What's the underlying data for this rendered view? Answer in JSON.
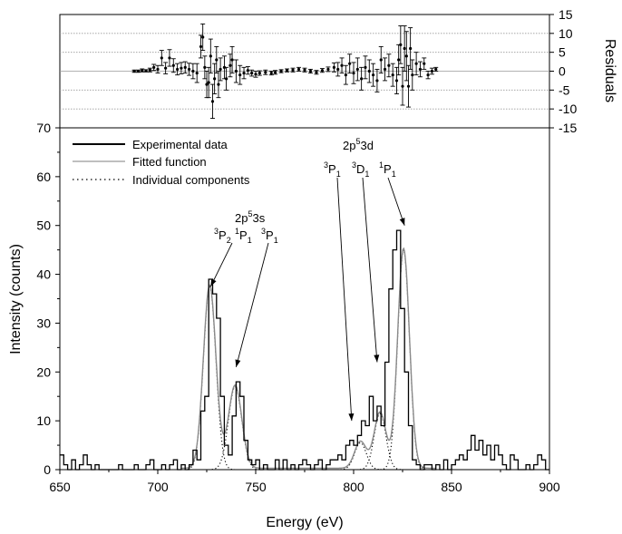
{
  "chart_data": [
    {
      "panel": "residuals",
      "type": "scatter",
      "ylabel": "Residuals",
      "ylim": [
        -15,
        15
      ],
      "yticks": [
        15,
        10,
        5,
        0,
        -5,
        -10,
        -15
      ],
      "xlim": [
        650,
        900
      ],
      "grid": true,
      "points": [
        {
          "x": 688,
          "y": 0.0,
          "err": 0.3
        },
        {
          "x": 690,
          "y": 0.0,
          "err": 0.3
        },
        {
          "x": 692,
          "y": 0.2,
          "err": 0.4
        },
        {
          "x": 694,
          "y": 0.1,
          "err": 0.3
        },
        {
          "x": 696,
          "y": 0.3,
          "err": 0.5
        },
        {
          "x": 698,
          "y": 1.0,
          "err": 0.8
        },
        {
          "x": 700,
          "y": 0.5,
          "err": 1.0
        },
        {
          "x": 702,
          "y": 3.5,
          "err": 2.0
        },
        {
          "x": 704,
          "y": 0.8,
          "err": 1.5
        },
        {
          "x": 706,
          "y": 3.5,
          "err": 2.2
        },
        {
          "x": 708,
          "y": 1.5,
          "err": 1.8
        },
        {
          "x": 710,
          "y": 0.5,
          "err": 1.5
        },
        {
          "x": 712,
          "y": 0.8,
          "err": 1.5
        },
        {
          "x": 714,
          "y": 1.0,
          "err": 1.5
        },
        {
          "x": 716,
          "y": 0.5,
          "err": 1.6
        },
        {
          "x": 718,
          "y": 0.0,
          "err": 2.0
        },
        {
          "x": 720,
          "y": -0.5,
          "err": 2.5
        },
        {
          "x": 722,
          "y": 6.5,
          "err": 3.0
        },
        {
          "x": 723,
          "y": 9.0,
          "err": 3.5
        },
        {
          "x": 724,
          "y": 1.0,
          "err": 3.0
        },
        {
          "x": 725,
          "y": -3.5,
          "err": 3.5
        },
        {
          "x": 726,
          "y": -3.0,
          "err": 4.0
        },
        {
          "x": 727,
          "y": 4.0,
          "err": 4.5
        },
        {
          "x": 728,
          "y": -8.0,
          "err": 4.5
        },
        {
          "x": 729,
          "y": -2.0,
          "err": 4.0
        },
        {
          "x": 730,
          "y": 3.0,
          "err": 3.5
        },
        {
          "x": 731,
          "y": -3.5,
          "err": 3.5
        },
        {
          "x": 732,
          "y": 0.5,
          "err": 3.0
        },
        {
          "x": 734,
          "y": 1.0,
          "err": 3.0
        },
        {
          "x": 735,
          "y": -2.0,
          "err": 3.0
        },
        {
          "x": 737,
          "y": 1.5,
          "err": 3.0
        },
        {
          "x": 738,
          "y": 3.0,
          "err": 3.5
        },
        {
          "x": 740,
          "y": 0.0,
          "err": 3.0
        },
        {
          "x": 742,
          "y": -1.0,
          "err": 2.5
        },
        {
          "x": 744,
          "y": -0.5,
          "err": 1.5
        },
        {
          "x": 746,
          "y": 0.2,
          "err": 1.0
        },
        {
          "x": 748,
          "y": -0.5,
          "err": 0.8
        },
        {
          "x": 750,
          "y": -0.8,
          "err": 0.8
        },
        {
          "x": 752,
          "y": -0.5,
          "err": 0.6
        },
        {
          "x": 755,
          "y": -0.3,
          "err": 0.6
        },
        {
          "x": 758,
          "y": -0.5,
          "err": 0.5
        },
        {
          "x": 760,
          "y": -0.3,
          "err": 0.5
        },
        {
          "x": 763,
          "y": 0.0,
          "err": 0.4
        },
        {
          "x": 766,
          "y": 0.2,
          "err": 0.4
        },
        {
          "x": 769,
          "y": 0.3,
          "err": 0.5
        },
        {
          "x": 772,
          "y": 0.5,
          "err": 0.5
        },
        {
          "x": 775,
          "y": 0.3,
          "err": 0.5
        },
        {
          "x": 778,
          "y": 0.0,
          "err": 0.5
        },
        {
          "x": 781,
          "y": -0.3,
          "err": 0.5
        },
        {
          "x": 784,
          "y": 0.2,
          "err": 0.5
        },
        {
          "x": 787,
          "y": 0.5,
          "err": 0.6
        },
        {
          "x": 790,
          "y": 1.0,
          "err": 1.2
        },
        {
          "x": 792,
          "y": 0.5,
          "err": 1.8
        },
        {
          "x": 794,
          "y": 1.5,
          "err": 2.0
        },
        {
          "x": 796,
          "y": -1.0,
          "err": 2.5
        },
        {
          "x": 798,
          "y": 2.0,
          "err": 2.5
        },
        {
          "x": 800,
          "y": -0.5,
          "err": 2.8
        },
        {
          "x": 802,
          "y": 0.5,
          "err": 3.0
        },
        {
          "x": 804,
          "y": -2.0,
          "err": 3.0
        },
        {
          "x": 806,
          "y": 1.0,
          "err": 3.0
        },
        {
          "x": 808,
          "y": 0.0,
          "err": 3.0
        },
        {
          "x": 810,
          "y": -1.0,
          "err": 3.0
        },
        {
          "x": 812,
          "y": -2.5,
          "err": 3.0
        },
        {
          "x": 814,
          "y": 3.0,
          "err": 3.5
        },
        {
          "x": 816,
          "y": 0.5,
          "err": 3.0
        },
        {
          "x": 818,
          "y": 1.5,
          "err": 3.0
        },
        {
          "x": 820,
          "y": -1.0,
          "err": 3.0
        },
        {
          "x": 822,
          "y": -2.5,
          "err": 3.5
        },
        {
          "x": 823,
          "y": 3.0,
          "err": 4.0
        },
        {
          "x": 824,
          "y": 7.0,
          "err": 5.0
        },
        {
          "x": 825,
          "y": -4.0,
          "err": 5.0
        },
        {
          "x": 826,
          "y": 6.0,
          "err": 6.0
        },
        {
          "x": 827,
          "y": 4.0,
          "err": 6.5
        },
        {
          "x": 828,
          "y": -4.0,
          "err": 5.5
        },
        {
          "x": 829,
          "y": 6.0,
          "err": 5.5
        },
        {
          "x": 830,
          "y": -1.0,
          "err": 4.0
        },
        {
          "x": 832,
          "y": 2.0,
          "err": 3.0
        },
        {
          "x": 834,
          "y": 0.5,
          "err": 2.0
        },
        {
          "x": 836,
          "y": 2.0,
          "err": 1.5
        },
        {
          "x": 838,
          "y": -1.0,
          "err": 1.0
        },
        {
          "x": 840,
          "y": 0.0,
          "err": 0.8
        },
        {
          "x": 842,
          "y": 0.5,
          "err": 0.5
        }
      ]
    },
    {
      "panel": "main",
      "type": "line",
      "xlabel": "Energy (eV)",
      "ylabel": "Intensity (counts)",
      "xlim": [
        650,
        900
      ],
      "ylim": [
        0,
        70
      ],
      "xticks": [
        650,
        700,
        750,
        800,
        850,
        900
      ],
      "yticks": [
        0,
        10,
        20,
        30,
        40,
        50,
        60,
        70
      ],
      "grid": false,
      "legend": {
        "position": "top-left",
        "entries": [
          "Experimental data",
          "Fitted function",
          "Individual components"
        ]
      },
      "series": [
        {
          "name": "Experimental data",
          "kind": "histogram",
          "bin_width": 2,
          "x": [
            650,
            652,
            654,
            656,
            658,
            660,
            662,
            664,
            666,
            668,
            670,
            672,
            674,
            676,
            678,
            680,
            682,
            684,
            686,
            688,
            690,
            692,
            694,
            696,
            698,
            700,
            702,
            704,
            706,
            708,
            710,
            712,
            714,
            716,
            718,
            720,
            722,
            724,
            726,
            728,
            730,
            732,
            734,
            736,
            738,
            740,
            742,
            744,
            746,
            748,
            750,
            752,
            754,
            756,
            758,
            760,
            762,
            764,
            766,
            768,
            770,
            772,
            774,
            776,
            778,
            780,
            782,
            784,
            786,
            788,
            790,
            792,
            794,
            796,
            798,
            800,
            802,
            804,
            806,
            808,
            810,
            812,
            814,
            816,
            818,
            820,
            822,
            824,
            826,
            828,
            830,
            832,
            834,
            836,
            838,
            840,
            842,
            844,
            846,
            848,
            850,
            852,
            854,
            856,
            858,
            860,
            862,
            864,
            866,
            868,
            870,
            872,
            874,
            876,
            878,
            880,
            882,
            884,
            886,
            888,
            890,
            892,
            894,
            896,
            898
          ],
          "y": [
            3,
            1,
            0,
            2,
            0,
            1,
            3,
            1,
            0,
            1,
            0,
            0,
            0,
            0,
            0,
            1,
            0,
            0,
            0,
            1,
            0,
            0,
            1,
            2,
            0,
            0,
            1,
            0,
            1,
            2,
            0,
            1,
            0,
            1,
            4,
            2,
            12,
            15,
            39,
            36,
            31,
            15,
            5,
            3,
            11,
            18,
            15,
            6,
            2,
            1,
            2,
            0,
            1,
            0,
            0,
            2,
            0,
            2,
            0,
            1,
            0,
            1,
            2,
            1,
            0,
            1,
            2,
            0,
            1,
            2,
            2,
            3,
            2,
            5,
            6,
            5,
            7,
            10,
            9,
            15,
            10,
            13,
            9,
            22,
            37,
            45,
            49,
            33,
            20,
            9,
            2,
            1,
            0,
            1,
            1,
            0,
            1,
            0,
            2,
            0,
            1,
            2,
            3,
            2,
            4,
            7,
            4,
            6,
            3,
            5,
            2,
            5,
            3,
            1,
            0,
            3,
            2,
            0,
            0,
            1,
            0,
            1,
            3,
            2,
            0
          ]
        },
        {
          "name": "Fitted function",
          "kind": "gaussian-sum",
          "components": [
            {
              "label": "3P2",
              "center": 726.5,
              "amplitude": 37.5,
              "sigma": 3.2
            },
            {
              "label": "1P1",
              "center": 739.5,
              "amplitude": 17.0,
              "sigma": 3.4
            },
            {
              "label": "3P1",
              "center": 803.5,
              "amplitude": 5.5,
              "sigma": 3.0
            },
            {
              "label": "3D1",
              "center": 813.5,
              "amplitude": 11.5,
              "sigma": 3.0
            },
            {
              "label": "1P1",
              "center": 825.5,
              "amplitude": 45.0,
              "sigma": 3.0
            }
          ],
          "baseline": 0.3
        },
        {
          "name": "Individual components",
          "kind": "gaussian-components"
        }
      ],
      "annotations": [
        {
          "text": "2p",
          "sup": "5",
          "rest": "3s",
          "target_x": 0,
          "target_y": 0
        },
        {
          "text": "2p",
          "sup": "5",
          "rest": "3d",
          "target_x": 0,
          "target_y": 0
        }
      ],
      "term_labels": [
        {
          "pre": "3",
          "main": "P",
          "sub": "2",
          "arrow_to": [
            727,
            37.5
          ]
        },
        {
          "pre": "1",
          "main": "P",
          "sub": "1",
          "arrow_to": null
        },
        {
          "pre": "3",
          "main": "P",
          "sub": "1",
          "arrow_to": [
            740,
            21
          ]
        },
        {
          "pre": "3",
          "main": "P",
          "sub": "1",
          "arrow_to": [
            799,
            10
          ]
        },
        {
          "pre": "3",
          "main": "D",
          "sub": "1",
          "arrow_to": [
            812,
            22
          ]
        },
        {
          "pre": "1",
          "main": "P",
          "sub": "1",
          "arrow_to": [
            826,
            50
          ]
        }
      ]
    }
  ]
}
